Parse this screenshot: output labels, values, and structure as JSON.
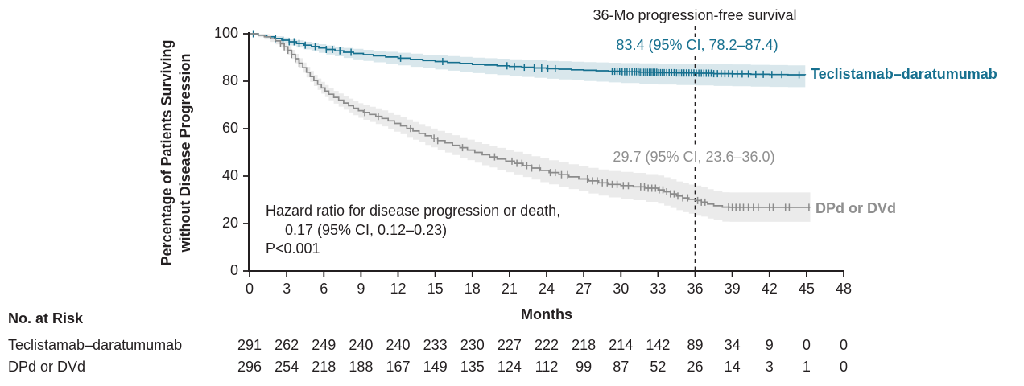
{
  "colors": {
    "teal": "#16708f",
    "teal_band": "#d9e7ec",
    "gray": "#8b8b8b",
    "gray_band": "#ebebeb",
    "gray_text": "#8f8f8f",
    "ink": "#231f20"
  },
  "chart_data": {
    "type": "line",
    "subtype": "kaplan-meier-step",
    "title": "36-Mo progression-free survival",
    "xlabel": "Months",
    "ylabel": [
      "Percentage of Patients Surviving",
      "without Disease Progression"
    ],
    "xlim": [
      0,
      48
    ],
    "ylim": [
      0,
      100
    ],
    "xticks": [
      0,
      3,
      6,
      9,
      12,
      15,
      18,
      21,
      24,
      27,
      30,
      33,
      36,
      39,
      42,
      45,
      48
    ],
    "yticks": [
      0,
      20,
      40,
      60,
      80,
      100
    ],
    "grid": false,
    "legend_position": "right-of-curve-ends",
    "dashed_line_x": 36,
    "hazard_text": [
      "Hazard ratio for disease progression or death,",
      "0.17 (95% CI, 0.12–0.23)",
      "P<0.001"
    ],
    "series": [
      {
        "name": "Teclistamab–daratumumab",
        "annotation": "83.4 (95% CI, 78.2–87.4)",
        "estimate_36mo": 83.4,
        "ci_36mo": [
          78.2,
          87.4
        ],
        "color": "#16708f",
        "band_color": "#d9e7ec",
        "ci_upper_offset_36": 4.0,
        "ci_lower_offset_36": 5.2,
        "points": [
          [
            0,
            100
          ],
          [
            0.7,
            99.4
          ],
          [
            1.4,
            98.7
          ],
          [
            2,
            98
          ],
          [
            2.6,
            97.3
          ],
          [
            3.2,
            96.6
          ],
          [
            3.8,
            95.9
          ],
          [
            4.4,
            95.2
          ],
          [
            5,
            94.6
          ],
          [
            5.6,
            94
          ],
          [
            6.2,
            93.4
          ],
          [
            6.9,
            92.8
          ],
          [
            7.6,
            92.2
          ],
          [
            8.4,
            91.7
          ],
          [
            9.2,
            91.2
          ],
          [
            10,
            90.7
          ],
          [
            11,
            90.2
          ],
          [
            12,
            89.7
          ],
          [
            13,
            89.2
          ],
          [
            14,
            88.7
          ],
          [
            15,
            88.3
          ],
          [
            16,
            87.9
          ],
          [
            17,
            87.5
          ],
          [
            18,
            87.1
          ],
          [
            19,
            86.8
          ],
          [
            20,
            86.5
          ],
          [
            21,
            86.2
          ],
          [
            22,
            85.9
          ],
          [
            23,
            85.6
          ],
          [
            24,
            85.3
          ],
          [
            25,
            85.1
          ],
          [
            26,
            84.8
          ],
          [
            27,
            84.6
          ],
          [
            28,
            84.4
          ],
          [
            29,
            84.2
          ],
          [
            30,
            84
          ],
          [
            31.5,
            83.8
          ],
          [
            33,
            83.6
          ],
          [
            34.5,
            83.5
          ],
          [
            36,
            83.4
          ],
          [
            37.5,
            83.2
          ],
          [
            39,
            83.1
          ],
          [
            40.5,
            82.9
          ],
          [
            42,
            82.8
          ],
          [
            43.5,
            82.7
          ],
          [
            44.9,
            82.6
          ]
        ],
        "censor_months": [
          0.3,
          2.1,
          2.7,
          3.2,
          3.6,
          4.0,
          4.5,
          5.3,
          6.2,
          6.7,
          7.3,
          8.2,
          12.2,
          15.6,
          20.8,
          21.4,
          22.2,
          23.0,
          23.6,
          24.1,
          24.7,
          29.3,
          29.5,
          29.7,
          29.9,
          30.1,
          30.3,
          30.5,
          30.7,
          30.9,
          31.1,
          31.25,
          31.4,
          31.55,
          31.7,
          31.85,
          32.0,
          32.15,
          32.3,
          32.45,
          32.6,
          32.75,
          32.9,
          33.05,
          33.2,
          33.35,
          33.5,
          33.7,
          33.9,
          34.1,
          34.3,
          34.5,
          34.7,
          34.9,
          35.1,
          35.3,
          35.5,
          35.7,
          35.9,
          36.1,
          36.3,
          36.5,
          36.7,
          36.9,
          37.1,
          37.3,
          37.5,
          37.8,
          38.1,
          38.4,
          38.7,
          39.0,
          39.4,
          39.8,
          40.3,
          40.9,
          41.5,
          42.2,
          43.0,
          44.4
        ]
      },
      {
        "name": "DPd or DVd",
        "annotation": "29.7 (95% CI, 23.6–36.0)",
        "estimate_36mo": 29.7,
        "ci_36mo": [
          23.6,
          36.0
        ],
        "color": "#8b8b8b",
        "band_color": "#ebebeb",
        "ci_upper_offset_36": 6.3,
        "ci_lower_offset_36": 6.1,
        "points": [
          [
            0,
            100
          ],
          [
            0.7,
            99.4
          ],
          [
            1.2,
            98.7
          ],
          [
            1.7,
            97.9
          ],
          [
            2.1,
            97
          ],
          [
            2.5,
            95.8
          ],
          [
            2.8,
            94.5
          ],
          [
            3.1,
            93
          ],
          [
            3.4,
            91.3
          ],
          [
            3.7,
            89.5
          ],
          [
            4.0,
            87.6
          ],
          [
            4.3,
            85.7
          ],
          [
            4.6,
            83.8
          ],
          [
            4.9,
            82
          ],
          [
            5.2,
            80.3
          ],
          [
            5.5,
            78.7
          ],
          [
            5.8,
            77.2
          ],
          [
            6.1,
            75.8
          ],
          [
            6.4,
            74.5
          ],
          [
            6.8,
            73.2
          ],
          [
            7.2,
            72
          ],
          [
            7.6,
            70.8
          ],
          [
            8.0,
            69.7
          ],
          [
            8.4,
            68.6
          ],
          [
            8.8,
            67.6
          ],
          [
            9.2,
            66.8
          ],
          [
            9.7,
            66
          ],
          [
            10.2,
            65.2
          ],
          [
            10.7,
            64.3
          ],
          [
            11.2,
            63.3
          ],
          [
            11.7,
            62.2
          ],
          [
            12.2,
            61.2
          ],
          [
            12.7,
            60.1
          ],
          [
            13.2,
            59
          ],
          [
            13.7,
            58
          ],
          [
            14.2,
            57
          ],
          [
            14.7,
            56
          ],
          [
            15.2,
            55
          ],
          [
            15.8,
            54
          ],
          [
            16.4,
            53
          ],
          [
            17,
            52
          ],
          [
            17.6,
            51
          ],
          [
            18.2,
            50
          ],
          [
            18.8,
            49
          ],
          [
            19.4,
            48.1
          ],
          [
            20,
            47.2
          ],
          [
            20.7,
            46.3
          ],
          [
            21.4,
            45.4
          ],
          [
            22.1,
            44.4
          ],
          [
            22.8,
            43.4
          ],
          [
            23.5,
            42.4
          ],
          [
            24.2,
            41.5
          ],
          [
            25,
            40.6
          ],
          [
            25.8,
            39.7
          ],
          [
            26.6,
            38.8
          ],
          [
            27.4,
            38
          ],
          [
            28.2,
            37.2
          ],
          [
            29,
            36.5
          ],
          [
            30,
            36
          ],
          [
            31,
            35.5
          ],
          [
            32,
            34.9
          ],
          [
            33,
            34.2
          ],
          [
            33.5,
            33.4
          ],
          [
            34,
            32.5
          ],
          [
            34.5,
            31.6
          ],
          [
            35,
            30.8
          ],
          [
            35.5,
            30.2
          ],
          [
            36,
            29.7
          ],
          [
            36.5,
            29
          ],
          [
            37,
            28.2
          ],
          [
            37.5,
            27.5
          ],
          [
            38.2,
            26.9
          ],
          [
            38.8,
            26.8
          ],
          [
            45.3,
            26.8
          ]
        ],
        "censor_months": [
          2.5,
          2.8,
          3.1,
          3.4,
          3.7,
          4.0,
          9.3,
          10.4,
          13.0,
          14.9,
          15.2,
          17.2,
          19.8,
          21.2,
          21.6,
          22.0,
          22.4,
          22.8,
          23.4,
          24.3,
          24.7,
          25.2,
          25.7,
          27.3,
          27.7,
          28.1,
          28.5,
          28.9,
          29.3,
          29.7,
          30.2,
          30.6,
          31.6,
          31.9,
          32.2,
          32.5,
          32.8,
          33.1,
          33.4,
          33.7,
          34.0,
          34.3,
          34.6,
          35.0,
          35.4,
          36.2,
          36.5,
          36.8,
          38.7,
          39.0,
          39.3,
          39.6,
          39.9,
          40.3,
          40.7,
          41.1,
          42.0,
          42.3,
          43.3,
          43.6,
          45.2
        ]
      }
    ],
    "risk_table": {
      "header": "No. at Risk",
      "months": [
        0,
        3,
        6,
        9,
        12,
        15,
        18,
        21,
        24,
        27,
        30,
        33,
        36,
        39,
        42,
        45,
        48
      ],
      "rows": [
        {
          "label": "Teclistamab–daratumumab",
          "values": [
            291,
            262,
            249,
            240,
            240,
            233,
            230,
            227,
            222,
            218,
            214,
            142,
            89,
            34,
            9,
            0,
            0
          ]
        },
        {
          "label": "DPd or DVd",
          "values": [
            296,
            254,
            218,
            188,
            167,
            149,
            135,
            124,
            112,
            99,
            87,
            52,
            26,
            14,
            3,
            1,
            0
          ]
        }
      ]
    }
  }
}
